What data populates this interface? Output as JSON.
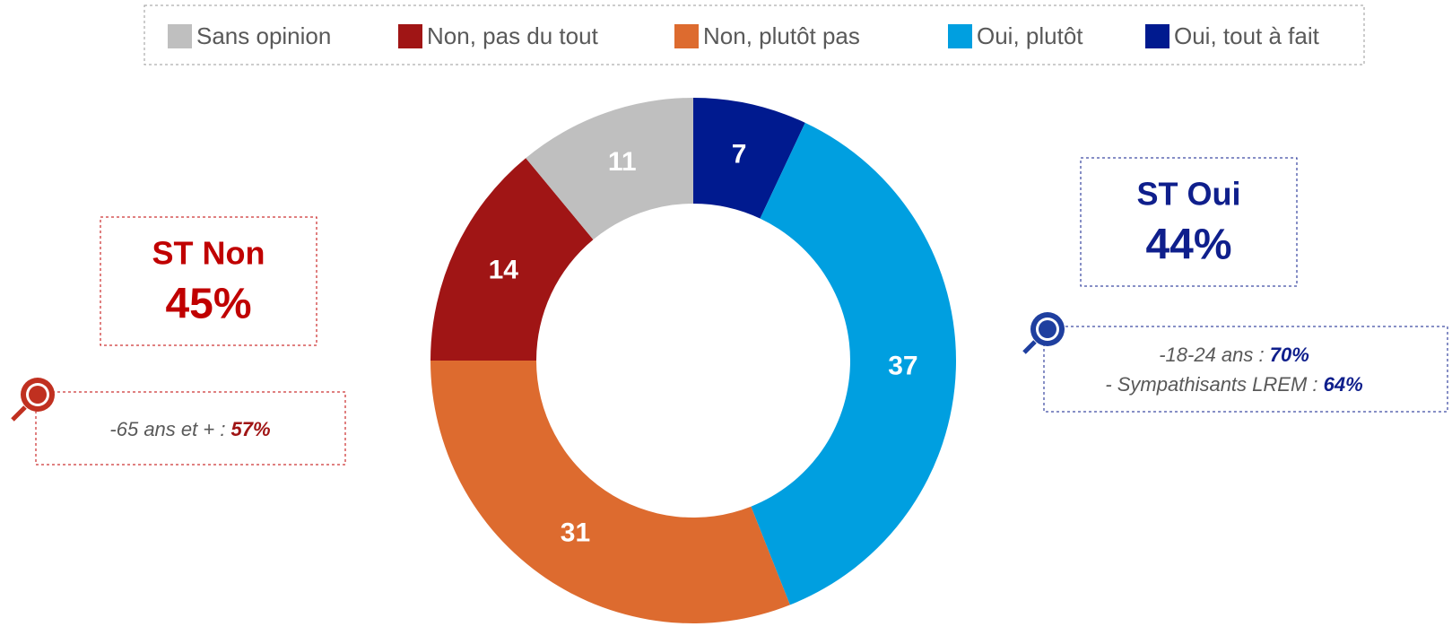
{
  "chart_data": {
    "type": "donut",
    "categories": [
      "Sans opinion",
      "Non, pas du tout",
      "Non, plutôt pas",
      "Oui, plutôt",
      "Oui, tout à fait"
    ],
    "values": [
      11,
      14,
      31,
      37,
      7
    ],
    "colors": [
      "#bfbfbf",
      "#a01515",
      "#dd6b2f",
      "#009fe0",
      "#001a8f"
    ],
    "annotations": {
      "st_non": {
        "label": "ST Non",
        "value": "45%",
        "color": "#c00000"
      },
      "st_oui": {
        "label": "ST Oui",
        "value": "44%",
        "color": "#0f1f8c"
      },
      "note_non": [
        {
          "text": "-65 ans et + : ",
          "value": "57%"
        }
      ],
      "note_oui": [
        {
          "text": "-18-24 ans : ",
          "value": "70%"
        },
        {
          "text": "- Sympathisants LREM : ",
          "value": "64%"
        }
      ]
    }
  }
}
